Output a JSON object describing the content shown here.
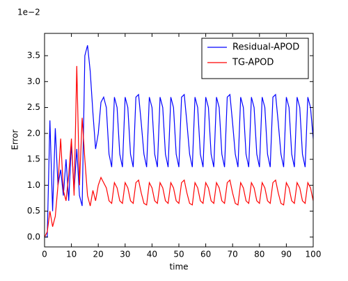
{
  "chart_data": {
    "type": "line",
    "xlabel": "time",
    "ylabel": "Error",
    "offset_label": "1e−2",
    "x": [
      0,
      1,
      2,
      3,
      4,
      5,
      6,
      7,
      8,
      9,
      10,
      11,
      12,
      13,
      14,
      15,
      16,
      17,
      18,
      19,
      20,
      21,
      22,
      23,
      24,
      25,
      26,
      27,
      28,
      29,
      30,
      31,
      32,
      33,
      34,
      35,
      36,
      37,
      38,
      39,
      40,
      41,
      42,
      43,
      44,
      45,
      46,
      47,
      48,
      49,
      50,
      51,
      52,
      53,
      54,
      55,
      56,
      57,
      58,
      59,
      60,
      61,
      62,
      63,
      64,
      65,
      66,
      67,
      68,
      69,
      70,
      71,
      72,
      73,
      74,
      75,
      76,
      77,
      78,
      79,
      80,
      81,
      82,
      83,
      84,
      85,
      86,
      87,
      88,
      89,
      90,
      91,
      92,
      93,
      94,
      95,
      96,
      97,
      98,
      99,
      100
    ],
    "series": [
      {
        "name": "Residual-APOD",
        "color": "#0000ff",
        "values": [
          0,
          0,
          2.25,
          0.5,
          2.1,
          1.0,
          1.3,
          0.8,
          1.5,
          0.7,
          1.8,
          0.9,
          1.7,
          0.8,
          0.6,
          3.5,
          3.7,
          3.2,
          2.4,
          1.7,
          2.0,
          2.6,
          2.7,
          2.5,
          1.6,
          1.35,
          2.7,
          2.5,
          1.6,
          1.35,
          2.7,
          2.5,
          1.6,
          1.35,
          2.7,
          2.75,
          2.2,
          1.6,
          1.35,
          2.7,
          2.5,
          1.6,
          1.35,
          2.7,
          2.5,
          1.6,
          1.35,
          2.7,
          2.5,
          1.6,
          1.35,
          2.7,
          2.75,
          2.2,
          1.6,
          1.35,
          2.7,
          2.5,
          1.6,
          1.35,
          2.7,
          2.5,
          1.6,
          1.35,
          2.7,
          2.5,
          1.6,
          1.35,
          2.7,
          2.75,
          2.2,
          1.6,
          1.35,
          2.7,
          2.5,
          1.6,
          1.35,
          2.7,
          2.5,
          1.6,
          1.35,
          2.7,
          2.5,
          1.6,
          1.35,
          2.7,
          2.75,
          2.2,
          1.6,
          1.35,
          2.7,
          2.5,
          1.6,
          1.35,
          2.7,
          2.5,
          1.6,
          1.35,
          2.7,
          2.5,
          1.9
        ]
      },
      {
        "name": "TG-APOD",
        "color": "#ff0000",
        "values": [
          0,
          0.1,
          0.5,
          0.2,
          0.4,
          1.0,
          1.9,
          0.9,
          0.7,
          1.2,
          1.9,
          0.8,
          3.3,
          1.0,
          2.3,
          1.5,
          0.8,
          0.6,
          0.9,
          0.7,
          1.0,
          1.15,
          1.05,
          0.95,
          0.7,
          0.65,
          1.05,
          0.95,
          0.7,
          0.65,
          1.05,
          0.95,
          0.7,
          0.65,
          1.05,
          1.1,
          0.85,
          0.65,
          0.62,
          1.05,
          0.95,
          0.7,
          0.65,
          1.05,
          0.95,
          0.7,
          0.65,
          1.05,
          0.95,
          0.7,
          0.65,
          1.05,
          1.1,
          0.85,
          0.65,
          0.62,
          1.05,
          0.95,
          0.7,
          0.65,
          1.05,
          0.95,
          0.7,
          0.65,
          1.05,
          0.95,
          0.7,
          0.65,
          1.05,
          1.1,
          0.85,
          0.65,
          0.62,
          1.05,
          0.95,
          0.7,
          0.65,
          1.05,
          0.95,
          0.7,
          0.65,
          1.05,
          0.95,
          0.7,
          0.65,
          1.05,
          1.1,
          0.85,
          0.65,
          0.62,
          1.05,
          0.95,
          0.7,
          0.65,
          1.05,
          0.95,
          0.7,
          0.65,
          1.05,
          0.95,
          0.7
        ]
      }
    ],
    "xlim": [
      0,
      100
    ],
    "xticks": [
      0,
      10,
      20,
      30,
      40,
      50,
      60,
      70,
      80,
      90,
      100
    ],
    "ylim": [
      -0.19,
      3.93
    ],
    "yticks": [
      {
        "value": 0,
        "label": "0.0"
      },
      0.5,
      {
        "value": 1,
        "label": "1.0"
      },
      1.5,
      {
        "value": 2,
        "label": "2.0"
      },
      2.5,
      {
        "value": 3,
        "label": "3.0"
      },
      3.5
    ],
    "legend": "upper right"
  }
}
